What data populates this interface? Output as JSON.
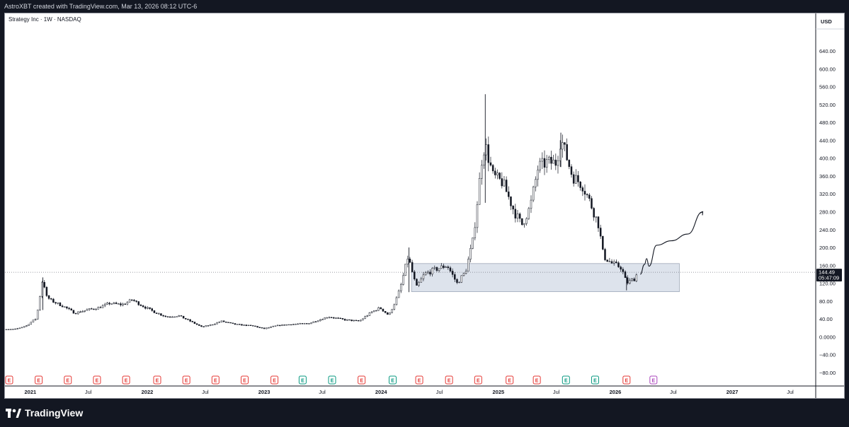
{
  "header": {
    "credit": "AstroXBT created with TradingView.com, Mar 13, 2026 08:12 UTC-6"
  },
  "chart": {
    "symbol_label": "Strategy Inc · 1W · NASDAQ",
    "currency": "USD"
  },
  "footer": {
    "brand": "TradingView"
  },
  "colors": {
    "candle": "#131722",
    "zone_fill": "#dde3ec",
    "zone_border": "#9fa8b8",
    "earnings_red": "#e53935",
    "earnings_green": "#089981",
    "earnings_purple": "#ab47bc"
  },
  "chart_data": {
    "type": "candlestick",
    "timeframe": "1W",
    "ylim": [
      -90,
      680
    ],
    "y_ticks": [
      640,
      600,
      560,
      520,
      480,
      440,
      400,
      360,
      320,
      280,
      240,
      200,
      160,
      120,
      80,
      40,
      0,
      -40,
      -80
    ],
    "y_tick_labels": [
      "640.00",
      "600.00",
      "560.00",
      "520.00",
      "480.00",
      "440.00",
      "400.00",
      "360.00",
      "320.00",
      "280.00",
      "240.00",
      "200.00",
      "160.00",
      "120.00",
      "80.00",
      "40.00",
      "0.0000",
      "−40.00",
      "−80.00"
    ],
    "x_labels": [
      {
        "label": "2021",
        "date": "2021-01-01"
      },
      {
        "label": "Jul",
        "date": "2021-07-01"
      },
      {
        "label": "2022",
        "date": "2022-01-01"
      },
      {
        "label": "Jul",
        "date": "2022-07-01"
      },
      {
        "label": "2023",
        "date": "2023-01-01"
      },
      {
        "label": "Jul",
        "date": "2023-07-01"
      },
      {
        "label": "2024",
        "date": "2024-01-01"
      },
      {
        "label": "Jul",
        "date": "2024-07-01"
      },
      {
        "label": "2025",
        "date": "2025-01-01"
      },
      {
        "label": "Jul",
        "date": "2025-07-01"
      },
      {
        "label": "2026",
        "date": "2026-01-01"
      },
      {
        "label": "Jul",
        "date": "2026-07-01"
      },
      {
        "label": "2027",
        "date": "2027-01-01"
      },
      {
        "label": "Jul",
        "date": "2027-07-01"
      }
    ],
    "x_range": [
      "2020-09-20",
      "2027-09-15"
    ],
    "current_price": {
      "value": 144.49,
      "label": "144.49",
      "countdown": "05:47:09"
    },
    "price_path": [
      [
        "2020-09-20",
        15
      ],
      [
        "2020-11-15",
        17
      ],
      [
        "2020-12-20",
        25
      ],
      [
        "2021-01-20",
        42
      ],
      [
        "2021-02-09",
        133
      ],
      [
        "2021-02-20",
        90
      ],
      [
        "2021-03-10",
        80
      ],
      [
        "2021-04-15",
        68
      ],
      [
        "2021-05-20",
        53
      ],
      [
        "2021-06-25",
        60
      ],
      [
        "2021-08-01",
        65
      ],
      [
        "2021-09-05",
        75
      ],
      [
        "2021-10-15",
        72
      ],
      [
        "2021-11-15",
        83
      ],
      [
        "2021-12-15",
        70
      ],
      [
        "2022-01-25",
        55
      ],
      [
        "2022-03-01",
        45
      ],
      [
        "2022-04-10",
        47
      ],
      [
        "2022-05-15",
        35
      ],
      [
        "2022-06-20",
        22
      ],
      [
        "2022-07-20",
        27
      ],
      [
        "2022-08-20",
        35
      ],
      [
        "2022-10-01",
        28
      ],
      [
        "2022-12-01",
        24
      ],
      [
        "2022-12-30",
        18
      ],
      [
        "2023-02-10",
        25
      ],
      [
        "2023-03-25",
        28
      ],
      [
        "2023-05-20",
        30
      ],
      [
        "2023-07-20",
        45
      ],
      [
        "2023-09-10",
        38
      ],
      [
        "2023-10-25",
        35
      ],
      [
        "2023-12-01",
        55
      ],
      [
        "2023-12-28",
        65
      ],
      [
        "2024-01-25",
        48
      ],
      [
        "2024-02-15",
        80
      ],
      [
        "2024-03-01",
        110
      ],
      [
        "2024-03-25",
        180
      ],
      [
        "2024-04-20",
        110
      ],
      [
        "2024-05-15",
        140
      ],
      [
        "2024-06-15",
        150
      ],
      [
        "2024-07-25",
        160
      ],
      [
        "2024-08-25",
        120
      ],
      [
        "2024-09-20",
        145
      ],
      [
        "2024-10-15",
        220
      ],
      [
        "2024-11-12",
        410
      ],
      [
        "2024-11-21",
        430
      ],
      [
        "2024-12-15",
        360
      ],
      [
        "2025-01-15",
        345
      ],
      [
        "2025-02-20",
        280
      ],
      [
        "2025-03-15",
        250
      ],
      [
        "2025-04-10",
        290
      ],
      [
        "2025-05-05",
        380
      ],
      [
        "2025-06-01",
        390
      ],
      [
        "2025-07-01",
        390
      ],
      [
        "2025-07-15",
        445
      ],
      [
        "2025-08-20",
        360
      ],
      [
        "2025-09-20",
        340
      ],
      [
        "2025-10-15",
        300
      ],
      [
        "2025-11-10",
        250
      ],
      [
        "2025-11-25",
        180
      ],
      [
        "2025-12-20",
        165
      ],
      [
        "2026-01-20",
        155
      ],
      [
        "2026-02-05",
        120
      ],
      [
        "2026-03-01",
        130
      ],
      [
        "2026-03-13",
        144.49
      ]
    ],
    "spike_wicks": [
      {
        "date": "2021-02-09",
        "high": 133,
        "low": 60
      },
      {
        "date": "2024-03-28",
        "high": 200,
        "low": 100
      },
      {
        "date": "2024-11-21",
        "high": 543,
        "low": 300
      },
      {
        "date": "2025-07-15",
        "high": 457,
        "low": 380
      },
      {
        "date": "2026-02-05",
        "high": 135,
        "low": 104
      }
    ],
    "support_zone": {
      "date_start": "2024-04-05",
      "date_end": "2026-07-20",
      "price_low": 101,
      "price_high": 164
    },
    "projection_path": [
      [
        "2026-03-20",
        140
      ],
      [
        "2026-04-02",
        162
      ],
      [
        "2026-04-09",
        175
      ],
      [
        "2026-04-16",
        158
      ],
      [
        "2026-05-10",
        205
      ],
      [
        "2026-06-25",
        215
      ],
      [
        "2026-08-15",
        230
      ],
      [
        "2026-10-01",
        280
      ]
    ],
    "earnings_markers": [
      {
        "date": "2020-10-27",
        "type": "E",
        "color": "red"
      },
      {
        "date": "2021-01-27",
        "type": "E",
        "color": "red"
      },
      {
        "date": "2021-04-28",
        "type": "E",
        "color": "red"
      },
      {
        "date": "2021-07-28",
        "type": "E",
        "color": "red"
      },
      {
        "date": "2021-10-27",
        "type": "E",
        "color": "red"
      },
      {
        "date": "2022-02-01",
        "type": "E",
        "color": "red"
      },
      {
        "date": "2022-05-03",
        "type": "E",
        "color": "red"
      },
      {
        "date": "2022-08-02",
        "type": "E",
        "color": "red"
      },
      {
        "date": "2022-11-01",
        "type": "E",
        "color": "red"
      },
      {
        "date": "2023-02-02",
        "type": "E",
        "color": "red"
      },
      {
        "date": "2023-05-01",
        "type": "E",
        "color": "green"
      },
      {
        "date": "2023-08-01",
        "type": "E",
        "color": "green"
      },
      {
        "date": "2023-11-01",
        "type": "E",
        "color": "red"
      },
      {
        "date": "2024-02-06",
        "type": "E",
        "color": "green"
      },
      {
        "date": "2024-04-29",
        "type": "E",
        "color": "red"
      },
      {
        "date": "2024-07-31",
        "type": "E",
        "color": "red"
      },
      {
        "date": "2024-10-30",
        "type": "E",
        "color": "red"
      },
      {
        "date": "2025-02-05",
        "type": "E",
        "color": "red"
      },
      {
        "date": "2025-05-01",
        "type": "E",
        "color": "red"
      },
      {
        "date": "2025-07-31",
        "type": "E",
        "color": "green"
      },
      {
        "date": "2025-10-30",
        "type": "E",
        "color": "green"
      },
      {
        "date": "2026-02-05",
        "type": "E",
        "color": "red"
      },
      {
        "date": "2026-04-30",
        "type": "E",
        "color": "purple"
      }
    ]
  }
}
